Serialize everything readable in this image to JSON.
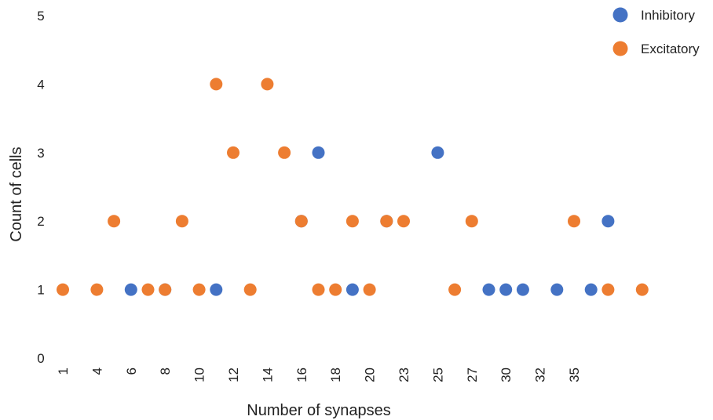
{
  "chart_data": {
    "type": "scatter",
    "title": "",
    "xlabel": "Number of synapses",
    "ylabel": "Count of cells",
    "ylim": [
      0,
      5
    ],
    "y_ticks": [
      "0",
      "1",
      "2",
      "3",
      "4",
      "5"
    ],
    "grid": false,
    "legend_position": "top-right",
    "x_tick_labels": [
      "1",
      "4",
      "6",
      "8",
      "10",
      "12",
      "14",
      "16",
      "18",
      "20",
      "23",
      "25",
      "27",
      "30",
      "32",
      "35"
    ],
    "x_axis_note": "categorical axis of 31 positions; labels shown on every other position",
    "series": [
      {
        "name": "Inhibitory",
        "color": "#4472C4",
        "points": [
          {
            "x": 5,
            "y": 1
          },
          {
            "x": 7,
            "y": 1
          },
          {
            "x": 10,
            "y": 1
          },
          {
            "x": 15,
            "y": 2
          },
          {
            "x": 16,
            "y": 3
          },
          {
            "x": 18,
            "y": 1
          },
          {
            "x": 20,
            "y": 2
          },
          {
            "x": 23,
            "y": 3
          },
          {
            "x": 26,
            "y": 1
          },
          {
            "x": 27,
            "y": 1
          },
          {
            "x": 28,
            "y": 1
          },
          {
            "x": 30,
            "y": 1
          },
          {
            "x": 32,
            "y": 1
          },
          {
            "x": 33,
            "y": 2
          }
        ]
      },
      {
        "name": "Excitatory",
        "color": "#ED7D31",
        "points": [
          {
            "x": 1,
            "y": 1
          },
          {
            "x": 3,
            "y": 1
          },
          {
            "x": 4,
            "y": 2
          },
          {
            "x": 6,
            "y": 1
          },
          {
            "x": 7,
            "y": 1
          },
          {
            "x": 8,
            "y": 2
          },
          {
            "x": 9,
            "y": 1
          },
          {
            "x": 10,
            "y": 4
          },
          {
            "x": 11,
            "y": 3
          },
          {
            "x": 12,
            "y": 1
          },
          {
            "x": 13,
            "y": 4
          },
          {
            "x": 14,
            "y": 3
          },
          {
            "x": 15,
            "y": 2
          },
          {
            "x": 16,
            "y": 1
          },
          {
            "x": 17,
            "y": 1
          },
          {
            "x": 18,
            "y": 2
          },
          {
            "x": 19,
            "y": 1
          },
          {
            "x": 20,
            "y": 2
          },
          {
            "x": 21,
            "y": 2
          },
          {
            "x": 24,
            "y": 1
          },
          {
            "x": 25,
            "y": 2
          },
          {
            "x": 31,
            "y": 2
          },
          {
            "x": 33,
            "y": 1
          },
          {
            "x": 35,
            "y": 1
          }
        ]
      }
    ]
  }
}
